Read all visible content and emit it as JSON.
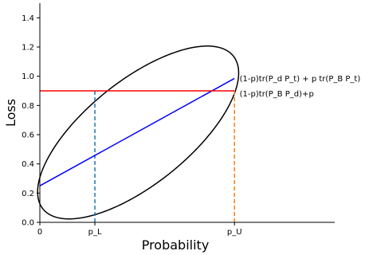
{
  "chart_data": {
    "type": "line",
    "title": "",
    "xlabel": "Probability",
    "ylabel": "Loss",
    "xlim": [
      0,
      1.5
    ],
    "ylim": [
      0,
      1.5
    ],
    "grid": false,
    "x_ticks": [
      {
        "value": 0,
        "label": "0"
      },
      {
        "value": 0.28,
        "label": "p_L"
      },
      {
        "value": 0.99,
        "label": "p_U"
      }
    ],
    "y_ticks": [
      {
        "value": 0.0,
        "label": "0.0"
      },
      {
        "value": 0.2,
        "label": "0.2"
      },
      {
        "value": 0.4,
        "label": "0.4"
      },
      {
        "value": 0.6,
        "label": "0.6"
      },
      {
        "value": 0.8,
        "label": "0.8"
      },
      {
        "value": 1.0,
        "label": "1.0"
      },
      {
        "value": 1.2,
        "label": "1.2"
      },
      {
        "value": 1.4,
        "label": "1.4"
      }
    ],
    "series": [
      {
        "color": "#0000ff",
        "x": [
          0,
          0.99
        ],
        "y": [
          0.25,
          0.985
        ]
      },
      {
        "color": "#ff0000",
        "x": [
          0,
          0.99
        ],
        "y": [
          0.9,
          0.9
        ]
      }
    ],
    "ellipse": {
      "color": "#000000",
      "center": [
        0.5,
        0.615
      ],
      "semi_axis_major": 0.72,
      "semi_axis_minor": 0.305,
      "angle_deg": 51
    },
    "vertical_lines": [
      {
        "x": 0.28,
        "y": [
          0,
          0.9
        ],
        "color": "#1f77b4",
        "style": "dashed"
      },
      {
        "x": 0.99,
        "y": [
          0,
          0.9
        ],
        "color": "#ff7f0e",
        "style": "dashed"
      }
    ],
    "annotations": [
      {
        "text": "(1-p)tr(P_d P_t) + p tr(P_B P_t)",
        "x": 1.0,
        "y": 0.985
      },
      {
        "text": "(1-p)tr(P_B P_d)+p",
        "x": 1.0,
        "y": 0.88
      }
    ]
  }
}
